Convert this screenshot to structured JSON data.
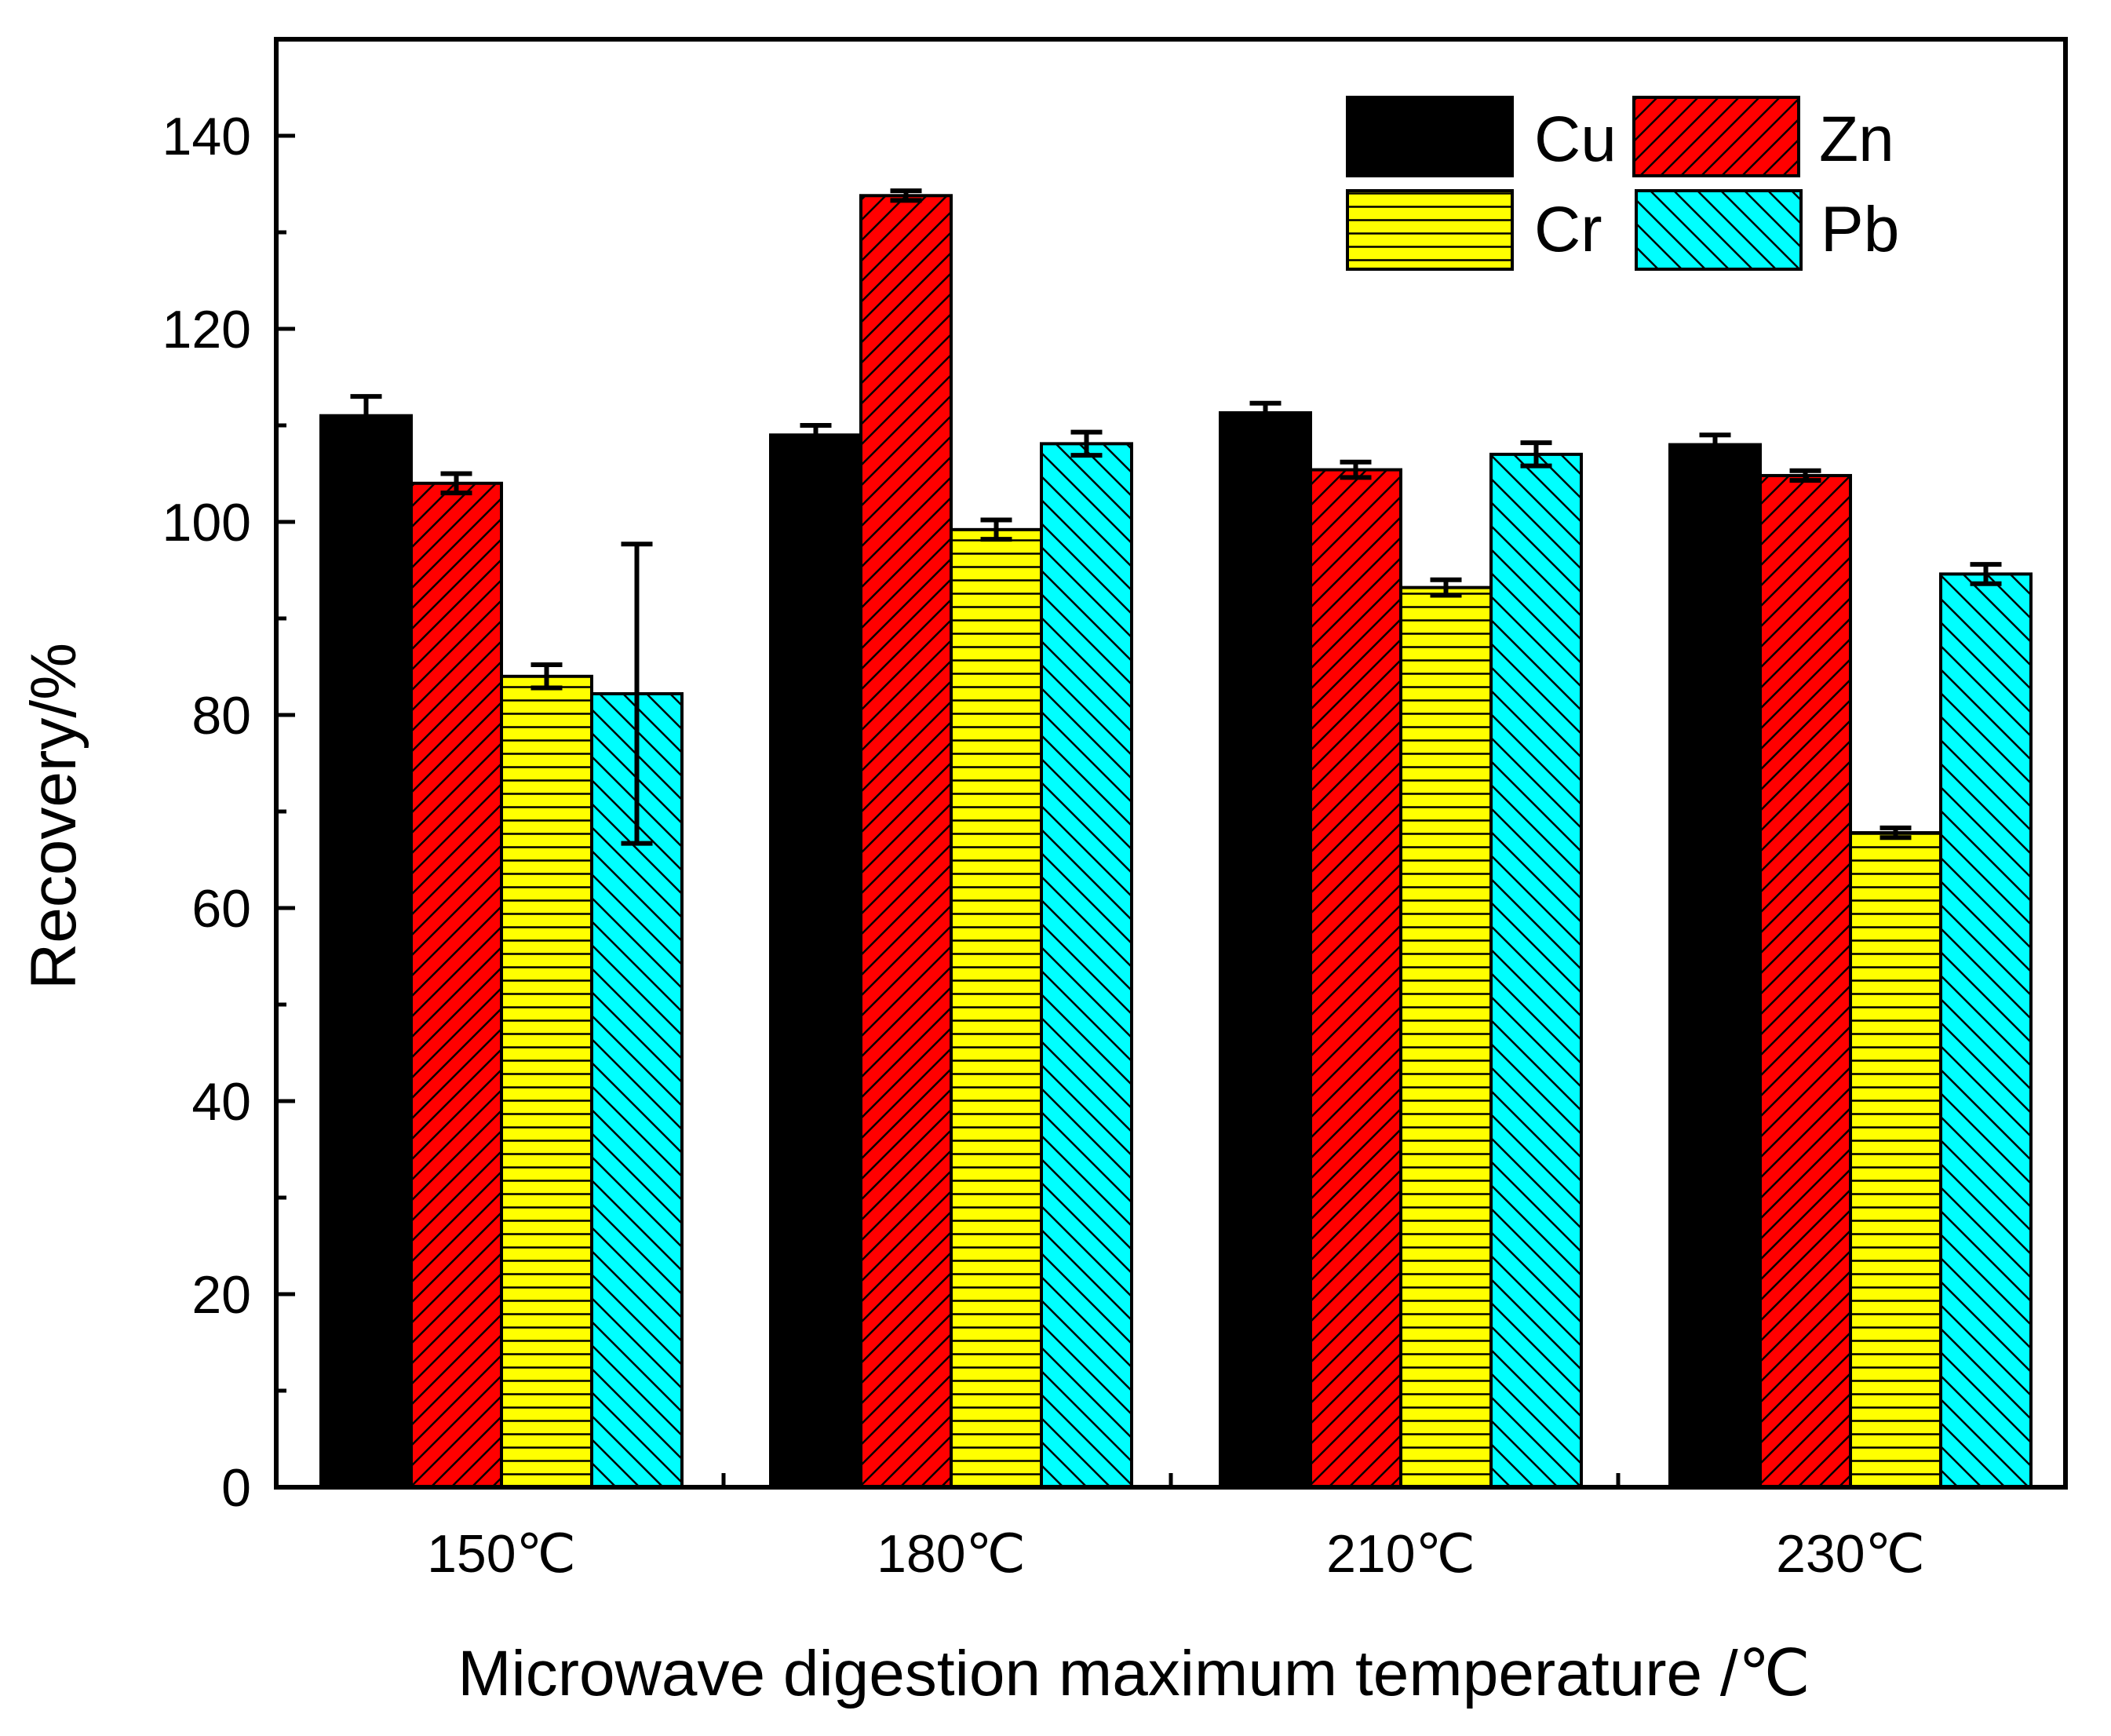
{
  "chart_data": {
    "type": "bar",
    "title": "",
    "xlabel": "Microwave digestion maximum temperature /℃",
    "ylabel": "Recovery/%",
    "categories": [
      "150℃",
      "180℃",
      "210℃",
      "230℃"
    ],
    "ylim": [
      0,
      150
    ],
    "yticks": [
      "0",
      "20",
      "40",
      "60",
      "80",
      "100",
      "120",
      "140"
    ],
    "grid": false,
    "legend_position": "top-right",
    "series": [
      {
        "name": "Cu",
        "color": "#000000",
        "pattern": "solid",
        "values": [
          111,
          109,
          111.3,
          108
        ],
        "errors": [
          2,
          1,
          1,
          1
        ]
      },
      {
        "name": "Zn",
        "color": "#ff0000",
        "pattern": "diagonal-up",
        "values": [
          104,
          133.8,
          105.4,
          104.8
        ],
        "errors": [
          1,
          0.5,
          0.8,
          0.5
        ]
      },
      {
        "name": "Cr",
        "color": "#ffff00",
        "pattern": "horizontal",
        "values": [
          84,
          99.2,
          93.2,
          67.8
        ],
        "errors": [
          1.2,
          1,
          0.8,
          0.5
        ]
      },
      {
        "name": "Pb",
        "color": "#00ffff",
        "pattern": "diagonal-down",
        "values": [
          82.2,
          108.1,
          107,
          94.6
        ],
        "errors": [
          15.5,
          1.2,
          1.2,
          1
        ]
      }
    ]
  }
}
